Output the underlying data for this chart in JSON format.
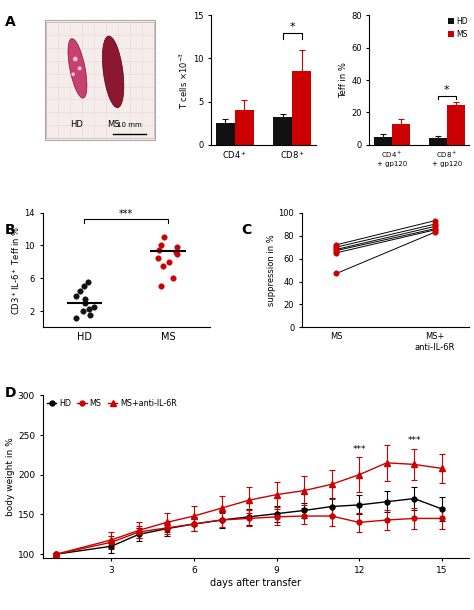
{
  "panel_A_bar1": {
    "hd_values": [
      2.5,
      3.2
    ],
    "ms_values": [
      4.0,
      8.5
    ],
    "hd_err": [
      0.5,
      0.4
    ],
    "ms_err": [
      1.2,
      2.5
    ],
    "ylabel": "T cells x10^-3",
    "ylim": [
      0,
      15
    ],
    "yticks": [
      0,
      5,
      10,
      15
    ],
    "sig_text": "*",
    "sig_y": 13.0
  },
  "panel_A_bar2": {
    "hd_values": [
      5.0,
      4.0
    ],
    "ms_values": [
      13.0,
      24.5
    ],
    "hd_err": [
      1.5,
      1.5
    ],
    "ms_err": [
      3.0,
      2.0
    ],
    "ylabel": "Teff in %",
    "ylim": [
      0,
      80
    ],
    "yticks": [
      0,
      20,
      40,
      60,
      80
    ],
    "sig_text": "*",
    "sig_y": 30.0
  },
  "panel_B": {
    "hd_dots": [
      1.2,
      1.5,
      2.0,
      2.2,
      2.5,
      3.0,
      3.5,
      3.8,
      4.5,
      5.0,
      5.5
    ],
    "ms_dots": [
      5.0,
      6.0,
      7.5,
      8.0,
      8.5,
      9.0,
      9.2,
      9.5,
      9.8,
      10.0,
      11.0
    ],
    "hd_median": 3.0,
    "ms_median": 9.3,
    "ylabel": "CD3+IL-6+ Teff in %",
    "ylim": [
      0,
      14
    ],
    "yticks": [
      2,
      6,
      10,
      14
    ],
    "sig_text": "***"
  },
  "panel_C": {
    "ms_values": [
      47,
      65,
      67,
      68,
      70,
      72
    ],
    "ms_anti_values": [
      83,
      85,
      86,
      88,
      90,
      93
    ],
    "ylabel": "suppression in %",
    "ylim": [
      0,
      100
    ],
    "yticks": [
      0,
      20,
      40,
      60,
      80,
      100
    ],
    "xlabel_left": "MS",
    "xlabel_right": "MS+\nanti-IL-6R"
  },
  "panel_D": {
    "days": [
      1,
      3,
      4,
      5,
      6,
      7,
      8,
      9,
      10,
      11,
      12,
      13,
      14,
      15
    ],
    "hd_values": [
      100,
      110,
      125,
      132,
      138,
      143,
      147,
      151,
      155,
      160,
      162,
      166,
      170,
      157
    ],
    "ms_values": [
      100,
      115,
      128,
      133,
      138,
      143,
      145,
      147,
      148,
      148,
      140,
      143,
      145,
      145
    ],
    "ms_anti_values": [
      100,
      118,
      130,
      140,
      148,
      158,
      168,
      175,
      180,
      188,
      200,
      215,
      213,
      208
    ],
    "hd_err": [
      2,
      8,
      8,
      9,
      9,
      10,
      10,
      10,
      10,
      11,
      12,
      13,
      15,
      15
    ],
    "ms_err": [
      2,
      8,
      8,
      8,
      9,
      9,
      10,
      10,
      10,
      12,
      12,
      12,
      13,
      13
    ],
    "ms_anti_err": [
      2,
      10,
      10,
      12,
      13,
      15,
      16,
      16,
      18,
      18,
      22,
      23,
      20,
      18
    ],
    "ylabel": "body weight in %",
    "xlabel": "days after transfer",
    "ylim": [
      95,
      300
    ],
    "yticks": [
      100,
      150,
      200,
      250,
      300
    ],
    "xticks": [
      3,
      6,
      9,
      12,
      15
    ],
    "xlim": [
      0.5,
      16
    ],
    "sig_days": [
      12,
      14
    ],
    "sig_texts": [
      "***",
      "***"
    ]
  }
}
